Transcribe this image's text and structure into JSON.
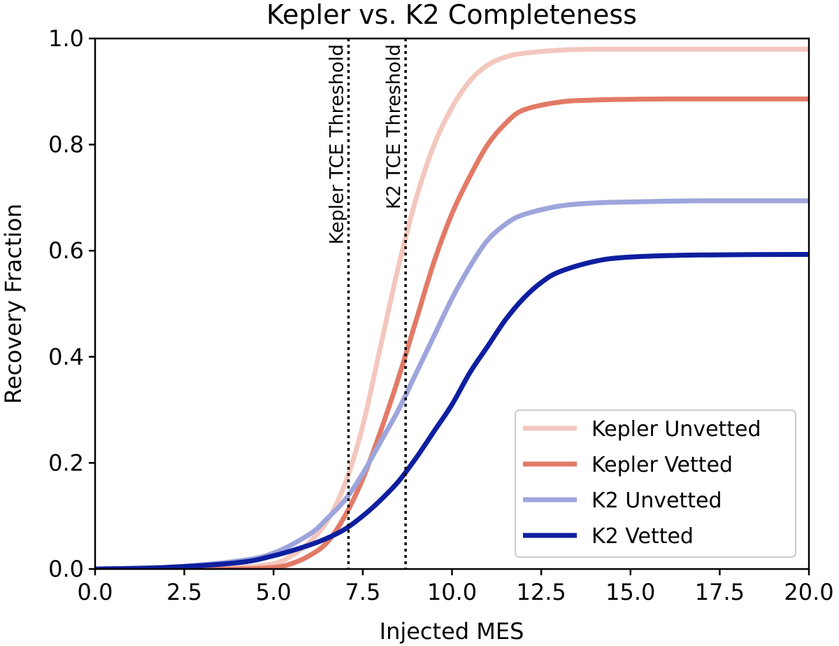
{
  "chart_data": {
    "type": "line",
    "title": "Kepler vs. K2 Completeness",
    "xlabel": "Injected MES",
    "ylabel": "Recovery Fraction",
    "xlim": [
      0,
      20
    ],
    "ylim": [
      0,
      1
    ],
    "xticks": [
      "0.0",
      "2.5",
      "5.0",
      "7.5",
      "10.0",
      "12.5",
      "15.0",
      "17.5",
      "20.0"
    ],
    "yticks": [
      "0.0",
      "0.2",
      "0.4",
      "0.6",
      "0.8",
      "1.0"
    ],
    "legend_position": "bottom-right",
    "series": [
      {
        "name": "Kepler Unvetted",
        "color": "#f3c7bd",
        "x": [
          0,
          2,
          4,
          5,
          5.5,
          6,
          6.5,
          7,
          7.5,
          8,
          8.5,
          9,
          9.5,
          10,
          10.5,
          11,
          11.5,
          12,
          13,
          14,
          16,
          20
        ],
        "y": [
          0.0,
          0.0,
          0.003,
          0.01,
          0.025,
          0.05,
          0.09,
          0.16,
          0.27,
          0.42,
          0.57,
          0.7,
          0.8,
          0.87,
          0.92,
          0.95,
          0.965,
          0.972,
          0.978,
          0.98,
          0.98,
          0.98
        ]
      },
      {
        "name": "Kepler Vetted",
        "color": "#e27a66",
        "x": [
          0,
          2,
          4,
          5,
          5.5,
          6,
          6.5,
          7,
          7.5,
          8,
          8.5,
          9,
          9.5,
          10,
          10.5,
          11,
          11.5,
          12,
          13,
          14,
          16,
          20
        ],
        "y": [
          0.0,
          0.0,
          0.0,
          0.003,
          0.01,
          0.025,
          0.05,
          0.1,
          0.17,
          0.26,
          0.36,
          0.47,
          0.58,
          0.67,
          0.74,
          0.8,
          0.84,
          0.865,
          0.88,
          0.884,
          0.886,
          0.886
        ]
      },
      {
        "name": "K2 Unvetted",
        "color": "#9da5dc",
        "x": [
          0,
          2,
          4,
          5,
          6,
          6.5,
          7,
          7.5,
          8,
          8.5,
          9,
          9.5,
          10,
          10.5,
          11,
          11.5,
          12,
          13,
          14,
          15,
          17,
          20
        ],
        "y": [
          0.0,
          0.003,
          0.015,
          0.03,
          0.065,
          0.095,
          0.13,
          0.18,
          0.24,
          0.3,
          0.37,
          0.44,
          0.51,
          0.57,
          0.62,
          0.65,
          0.668,
          0.684,
          0.69,
          0.692,
          0.694,
          0.694
        ]
      },
      {
        "name": "K2 Vetted",
        "color": "#0d1f9f",
        "x": [
          0,
          2,
          4,
          5,
          6,
          6.5,
          7,
          7.5,
          8,
          8.5,
          9,
          9.5,
          10,
          10.5,
          11,
          11.5,
          12,
          12.5,
          13,
          14,
          15,
          17,
          20
        ],
        "y": [
          0.0,
          0.003,
          0.012,
          0.025,
          0.045,
          0.058,
          0.075,
          0.1,
          0.13,
          0.165,
          0.21,
          0.26,
          0.31,
          0.37,
          0.42,
          0.47,
          0.51,
          0.54,
          0.56,
          0.58,
          0.588,
          0.592,
          0.593
        ]
      }
    ],
    "thresholds": [
      {
        "label": "Kepler TCE Threshold",
        "x": 7.1
      },
      {
        "label": "K2 TCE Threshold",
        "x": 8.7
      }
    ]
  }
}
